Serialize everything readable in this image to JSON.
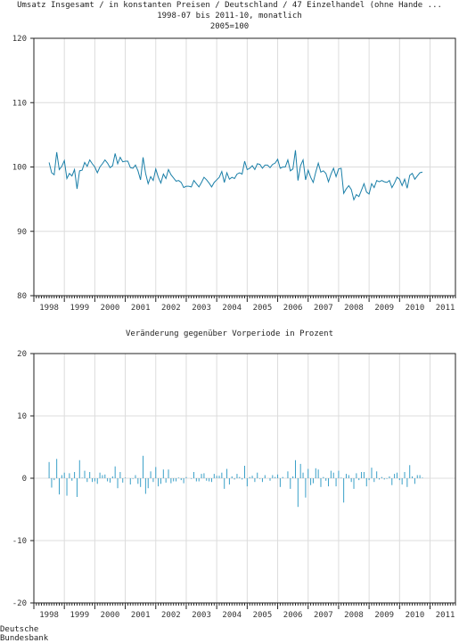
{
  "header": {
    "title_line1": "Umsatz Insgesamt / in konstanten Preisen / Deutschland / 47 Einzelhandel (ohne Hande ...",
    "title_line2": "1998-07 bis 2011-10, monatlich",
    "title_line3": "2005=100"
  },
  "source": "Deutsche Bundesbank",
  "colors": {
    "top_line": "#1a7fa8",
    "bottom_bars": "#3aa0c8",
    "grid": "#dcdcdc",
    "frame": "#222222"
  },
  "chart_data": [
    {
      "type": "line",
      "title": "Umsatz Insgesamt / in konstanten Preisen / Deutschland / 47 Einzelhandel (ohne Hande ...",
      "subtitle": "1998-07 bis 2011-10, monatlich — 2005=100",
      "x_range": [
        "1998-07",
        "2011-10"
      ],
      "ylim": [
        80,
        120
      ],
      "yticks": [
        80,
        90,
        100,
        110,
        120
      ],
      "xticks": [
        "1998",
        "1999",
        "2000",
        "2001",
        "2002",
        "2003",
        "2004",
        "2005",
        "2006",
        "2007",
        "2008",
        "2009",
        "2010",
        "2011"
      ],
      "grid": true,
      "series": [
        {
          "values": [
            100.7,
            99.1,
            98.8,
            102.3,
            99.6,
            100.1,
            101.0,
            98.2,
            99.0,
            98.6,
            99.6,
            96.6,
            99.4,
            99.5,
            100.7,
            100.1,
            101.1,
            100.5,
            100.0,
            99.1,
            100.0,
            100.5,
            101.1,
            100.6,
            99.9,
            100.2,
            102.1,
            100.5,
            101.5,
            100.8,
            100.9,
            100.9,
            99.9,
            99.8,
            100.3,
            99.4,
            98.0,
            101.5,
            99.0,
            97.4,
            98.5,
            97.9,
            99.7,
            98.4,
            97.5,
            98.9,
            98.2,
            99.6,
            98.8,
            98.3,
            97.8,
            97.9,
            97.6,
            96.8,
            97.0,
            97.0,
            96.9,
            97.9,
            97.4,
            96.9,
            97.6,
            98.4,
            98.0,
            97.5,
            96.9,
            97.6,
            98.0,
            98.4,
            99.3,
            97.6,
            99.1,
            98.1,
            98.4,
            98.2,
            98.9,
            99.1,
            98.9,
            100.9,
            99.6,
            99.8,
            100.2,
            99.6,
            100.5,
            100.4,
            99.8,
            100.3,
            100.3,
            99.9,
            100.4,
            100.6,
            101.2,
            99.8,
            100.0,
            100.0,
            101.1,
            99.4,
            99.7,
            102.6,
            97.9,
            100.2,
            101.1,
            98.0,
            99.5,
            98.4,
            97.6,
            99.2,
            100.6,
            99.2,
            99.4,
            99.0,
            97.7,
            98.9,
            99.8,
            98.5,
            99.7,
            99.8,
            95.9,
            96.6,
            97.1,
            96.5,
            94.9,
            95.7,
            95.4,
            96.4,
            97.4,
            96.1,
            95.8,
            97.4,
            96.8,
            97.9,
            97.7,
            97.9,
            97.7,
            97.6,
            97.9,
            96.8,
            97.5,
            98.4,
            98.1,
            97.1,
            98.1,
            96.7,
            98.7,
            99.0,
            98.1,
            98.6,
            99.1,
            99.2
          ]
        }
      ]
    },
    {
      "type": "bar",
      "title": "Veränderung gegenüber Vorperiode in Prozent",
      "x_range": [
        "1998-07",
        "2011-10"
      ],
      "ylim": [
        -20,
        20
      ],
      "yticks": [
        -20,
        -10,
        0,
        10,
        20
      ],
      "xticks": [
        "1998",
        "1999",
        "2000",
        "2001",
        "2002",
        "2003",
        "2004",
        "2005",
        "2006",
        "2007",
        "2008",
        "2009",
        "2010",
        "2011"
      ],
      "grid": true,
      "values": [
        2.6,
        -1.5,
        -0.3,
        3.1,
        -2.6,
        0.5,
        0.9,
        -2.8,
        0.8,
        -0.4,
        1.0,
        -3.0,
        2.9,
        0.1,
        1.2,
        -0.6,
        1.0,
        -0.6,
        -0.5,
        -0.9,
        0.9,
        0.5,
        0.6,
        -0.5,
        -0.7,
        0.3,
        1.9,
        -1.6,
        1.0,
        -0.7,
        0.1,
        0.0,
        -1.0,
        -0.1,
        0.5,
        -0.9,
        -1.4,
        3.6,
        -2.5,
        -1.6,
        1.1,
        -0.6,
        1.8,
        -1.3,
        -0.9,
        1.4,
        -0.7,
        1.4,
        -0.8,
        -0.5,
        -0.5,
        0.1,
        -0.3,
        -0.8,
        0.2,
        0.0,
        -0.1,
        1.0,
        -0.5,
        -0.5,
        0.7,
        0.8,
        -0.4,
        -0.5,
        -0.6,
        0.7,
        0.4,
        0.4,
        0.9,
        -1.7,
        1.5,
        -1.0,
        0.3,
        -0.2,
        0.7,
        0.2,
        -0.2,
        2.0,
        -1.3,
        0.2,
        0.4,
        -0.6,
        0.9,
        -0.1,
        -0.6,
        0.5,
        0.0,
        -0.4,
        0.5,
        0.2,
        0.6,
        -1.4,
        0.2,
        0.0,
        1.1,
        -1.7,
        0.3,
        2.9,
        -4.6,
        2.3,
        0.9,
        -3.1,
        1.5,
        -1.1,
        -0.8,
        1.6,
        1.4,
        -1.4,
        0.2,
        -0.4,
        -1.3,
        1.2,
        0.9,
        -1.3,
        1.2,
        0.1,
        -3.9,
        0.7,
        0.5,
        -0.6,
        -1.7,
        0.8,
        -0.3,
        1.0,
        1.0,
        -1.3,
        -0.3,
        1.7,
        -0.6,
        1.1,
        -0.2,
        0.2,
        -0.2,
        -0.1,
        0.3,
        -1.1,
        0.7,
        0.9,
        -0.3,
        -1.0,
        1.0,
        -1.4,
        2.1,
        0.3,
        -0.9,
        0.5,
        0.5,
        0.1
      ]
    }
  ]
}
